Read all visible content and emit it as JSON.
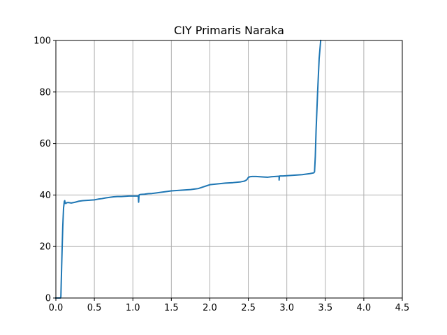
{
  "chart_data": {
    "type": "line",
    "title": "CIY Primaris Naraka",
    "xlabel": "",
    "ylabel": "",
    "xlim": [
      0.0,
      4.5
    ],
    "ylim": [
      0,
      100
    ],
    "x_ticks": [
      0.0,
      0.5,
      1.0,
      1.5,
      2.0,
      2.5,
      3.0,
      3.5,
      4.0,
      4.5
    ],
    "x_tick_labels": [
      "0.0",
      "0.5",
      "1.0",
      "1.5",
      "2.0",
      "2.5",
      "3.0",
      "3.5",
      "4.0",
      "4.5"
    ],
    "y_ticks": [
      0,
      20,
      40,
      60,
      80,
      100
    ],
    "y_tick_labels": [
      "0",
      "20",
      "40",
      "60",
      "80",
      "100"
    ],
    "grid": true,
    "series": [
      {
        "color": "#1f77b4",
        "x": [
          0.0,
          0.06,
          0.065,
          0.08,
          0.09,
          0.1,
          0.11,
          0.115,
          0.12,
          0.13,
          0.14,
          0.16,
          0.2,
          0.25,
          0.3,
          0.35,
          0.4,
          0.45,
          0.5,
          0.55,
          0.6,
          0.65,
          0.7,
          0.75,
          0.8,
          0.85,
          0.9,
          0.95,
          1.0,
          1.05,
          1.07,
          1.075,
          1.08,
          1.085,
          1.1,
          1.15,
          1.2,
          1.25,
          1.3,
          1.35,
          1.4,
          1.45,
          1.5,
          1.55,
          1.6,
          1.65,
          1.7,
          1.75,
          1.8,
          1.85,
          1.9,
          1.95,
          2.0,
          2.1,
          2.2,
          2.3,
          2.4,
          2.45,
          2.48,
          2.5,
          2.52,
          2.55,
          2.6,
          2.65,
          2.7,
          2.75,
          2.8,
          2.85,
          2.9,
          2.9,
          2.905,
          2.91,
          2.95,
          3.0,
          3.05,
          3.1,
          3.15,
          3.2,
          3.25,
          3.3,
          3.35,
          3.36,
          3.37,
          3.38,
          3.4,
          3.42,
          3.44
        ],
        "y": [
          0,
          0,
          0.5,
          18,
          28,
          35,
          37.5,
          37.8,
          36.8,
          36.7,
          37.0,
          37.1,
          36.9,
          37.2,
          37.6,
          37.8,
          37.9,
          38.0,
          38.1,
          38.4,
          38.6,
          38.9,
          39.1,
          39.3,
          39.4,
          39.4,
          39.5,
          39.6,
          39.6,
          39.6,
          39.6,
          37.2,
          40.0,
          40.1,
          40.2,
          40.3,
          40.5,
          40.6,
          40.8,
          41.0,
          41.2,
          41.4,
          41.6,
          41.7,
          41.8,
          41.9,
          42.0,
          42.1,
          42.3,
          42.5,
          43.0,
          43.5,
          44.0,
          44.3,
          44.6,
          44.8,
          45.1,
          45.4,
          45.9,
          46.8,
          47.1,
          47.2,
          47.2,
          47.1,
          47.0,
          46.9,
          47.1,
          47.2,
          47.3,
          45.8,
          47.3,
          47.4,
          47.4,
          47.5,
          47.6,
          47.7,
          47.8,
          47.9,
          48.1,
          48.3,
          48.6,
          49.0,
          55,
          65,
          80,
          93,
          100
        ]
      }
    ]
  }
}
